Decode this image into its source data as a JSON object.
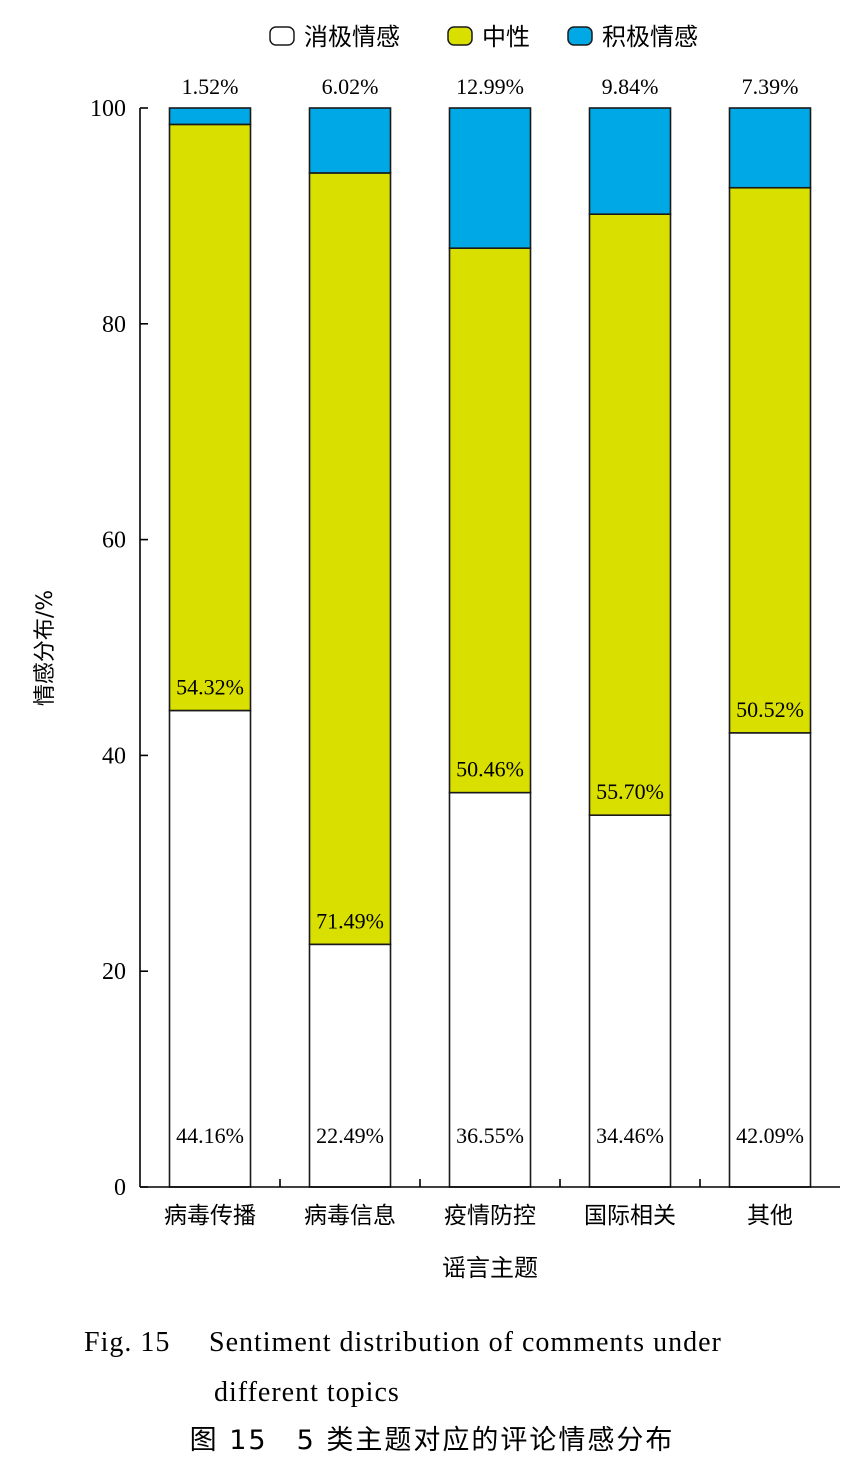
{
  "chart_data": {
    "type": "bar",
    "stacked": true,
    "categories": [
      "病毒传播",
      "病毒信息",
      "疫情防控",
      "国际相关",
      "其他"
    ],
    "series": [
      {
        "name": "消极情感",
        "color": "#ffffff",
        "values": [
          44.16,
          22.49,
          36.55,
          34.46,
          42.09
        ],
        "labels": [
          "44.16%",
          "22.49%",
          "36.55%",
          "34.46%",
          "42.09%"
        ]
      },
      {
        "name": "中性",
        "color": "#d9e000",
        "values": [
          54.32,
          71.49,
          50.46,
          55.7,
          50.52
        ],
        "labels": [
          "54.32%",
          "71.49%",
          "50.46%",
          "55.70%",
          "50.52%"
        ]
      },
      {
        "name": "积极情感",
        "color": "#00a8e6",
        "values": [
          1.52,
          6.02,
          12.99,
          9.84,
          7.39
        ],
        "labels": [
          "1.52%",
          "6.02%",
          "12.99%",
          "9.84%",
          "7.39%"
        ]
      }
    ],
    "xlabel": "谣言主题",
    "ylabel": "情感分布/%",
    "ylim": [
      0,
      100
    ],
    "yticks": [
      0,
      20,
      40,
      60,
      80,
      100
    ],
    "grid": false,
    "legend": "top"
  },
  "caption": {
    "en_number": "Fig. 15",
    "en_line1": "Sentiment distribution of comments under",
    "en_line2": "different topics",
    "zh": "图 15　5 类主题对应的评论情感分布"
  }
}
